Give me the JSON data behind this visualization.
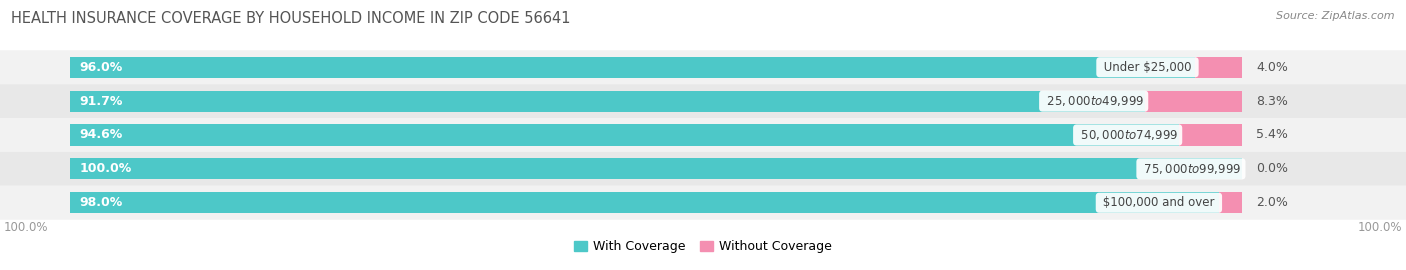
{
  "title": "HEALTH INSURANCE COVERAGE BY HOUSEHOLD INCOME IN ZIP CODE 56641",
  "source": "Source: ZipAtlas.com",
  "categories": [
    "Under $25,000",
    "$25,000 to $49,999",
    "$50,000 to $74,999",
    "$75,000 to $99,999",
    "$100,000 and over"
  ],
  "with_coverage": [
    96.0,
    91.7,
    94.6,
    100.0,
    98.0
  ],
  "without_coverage": [
    4.0,
    8.3,
    5.4,
    0.0,
    2.0
  ],
  "color_with": "#4DC8C8",
  "color_without": "#F48FB1",
  "row_bg_odd": "#F2F2F2",
  "row_bg_even": "#E8E8E8",
  "bar_height": 0.62,
  "title_fontsize": 10.5,
  "label_fontsize": 9,
  "tick_fontsize": 8.5,
  "source_fontsize": 8,
  "cat_label_fontsize": 8.5,
  "pct_label_fontsize": 9
}
